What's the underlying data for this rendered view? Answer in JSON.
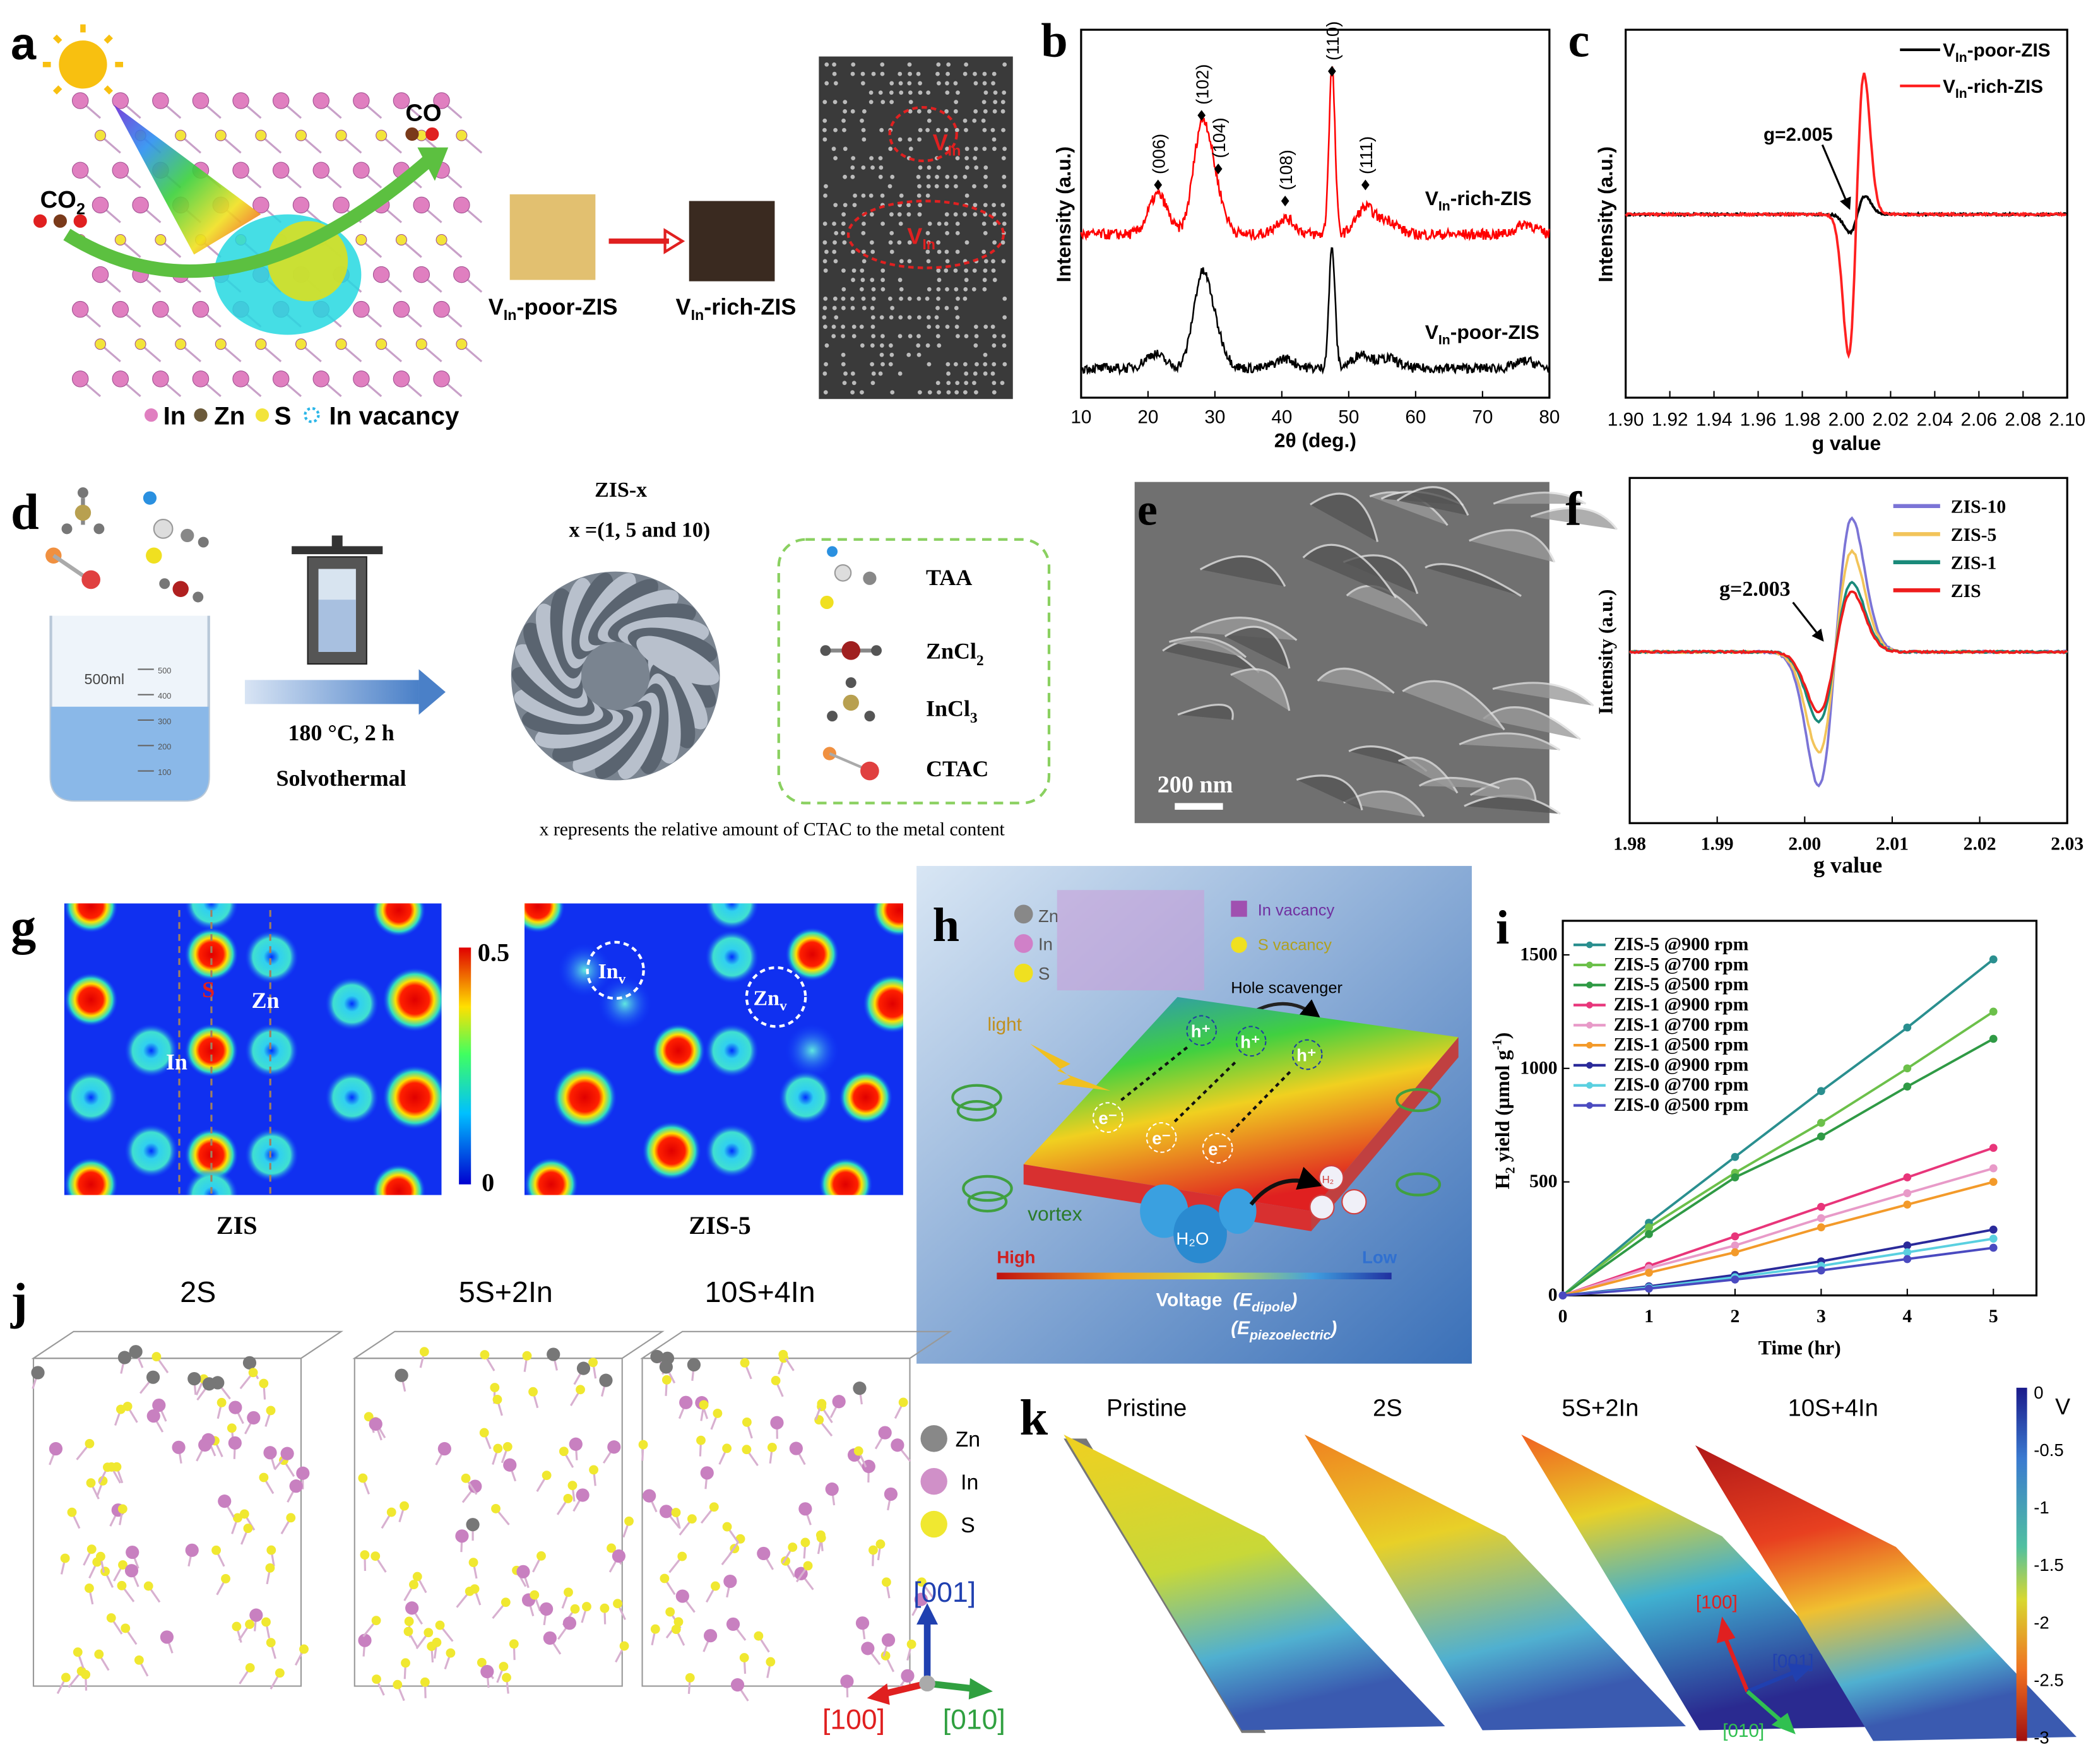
{
  "panel_labels": {
    "a": "a",
    "b": "b",
    "c": "c",
    "d": "d",
    "e": "e",
    "f": "f",
    "g": "g",
    "h": "h",
    "i": "i",
    "j": "j",
    "k": "k"
  },
  "panel_a": {
    "co2": {
      "main": "CO",
      "sub": "2"
    },
    "co": "CO",
    "poor": {
      "main": "V",
      "sub": "In",
      "rest": "-poor-ZIS"
    },
    "rich": {
      "main": "V",
      "sub": "In",
      "rest": "-rich-ZIS"
    },
    "tem_label": {
      "main": "V",
      "sub": "In"
    },
    "legend": {
      "in": "In",
      "zn": "Zn",
      "s": "S",
      "vac": "In vacancy"
    },
    "colors": {
      "in": "#e07fc0",
      "zn": "#6b5a3a",
      "s": "#f2e43a",
      "vac": "#2bb6e8"
    }
  },
  "panel_d": {
    "title": "ZIS-x",
    "subtitle": "x =(1, 5 and 10)",
    "condition": "180 °C, 2 h",
    "method": "Solvothermal",
    "beaker": "500ml",
    "beaker_ticks": [
      "500",
      "400",
      "300",
      "200",
      "100"
    ],
    "reagents": [
      {
        "main": "TAA",
        "sub": ""
      },
      {
        "main": "ZnCl",
        "sub": "2"
      },
      {
        "main": "InCl",
        "sub": "3"
      },
      {
        "main": "CTAC",
        "sub": ""
      }
    ],
    "note": "x represents the relative amount of CTAC to the metal content"
  },
  "panel_e": {
    "scale": "200 nm"
  },
  "panel_g": {
    "left_title": "ZIS",
    "right_title": "ZIS-5",
    "atom_s": "S",
    "atom_zn": "Zn",
    "atom_in": "In",
    "vac_in": {
      "main": "In",
      "sub": "v"
    },
    "vac_zn": {
      "main": "Zn",
      "sub": "v"
    },
    "colorbar_max": "0.5",
    "colorbar_min": "0"
  },
  "panel_h": {
    "zn": "Zn",
    "in": "In",
    "s": "S",
    "in_vacancy": "In vacancy",
    "s_vacancy": "S vacancy",
    "hole_scavenger": "Hole scavenger",
    "light": "light",
    "vortex": "vortex",
    "hole": "h⁺",
    "electron": "e⁻",
    "water": "H₂O",
    "h2": "H₂",
    "high": "High",
    "low": "Low",
    "voltage": "Voltage",
    "e_dipole": "(E",
    "e_dipole_sub": "dipole",
    "e_piezo_sub": "piezoelectric",
    "close": ")"
  },
  "panel_j": {
    "titles": [
      "2S",
      "5S+2In",
      "10S+4In"
    ],
    "legend": [
      "Zn",
      "In",
      "S"
    ],
    "axes": [
      "[001]",
      "[100]",
      "[010]"
    ]
  },
  "panel_k": {
    "titles": [
      "Pristine",
      "2S",
      "5S+2In",
      "10S+4In"
    ],
    "colorbar_ticks": [
      "0",
      "-0.5",
      "-1",
      "-1.5",
      "-2",
      "-2.5",
      "-3"
    ],
    "colorbar_unit": "V",
    "axes": [
      "[100]",
      "[001]",
      "[010]"
    ]
  },
  "chart_data": [
    {
      "id": "b",
      "type": "line",
      "title": "",
      "xlabel": "2θ (deg.)",
      "ylabel": "Intensity (a.u.)",
      "xlim": [
        10,
        80
      ],
      "xticks": [
        "10",
        "20",
        "30",
        "40",
        "50",
        "60",
        "70",
        "80"
      ],
      "peak_labels": [
        {
          "label": "(006)",
          "x": 21.5
        },
        {
          "label": "(102)",
          "x": 28
        },
        {
          "label": "(104)",
          "x": 30.5
        },
        {
          "label": "(108)",
          "x": 40.5
        },
        {
          "label": "(110)",
          "x": 47.5
        },
        {
          "label": "(111)",
          "x": 52.5
        }
      ],
      "series": [
        {
          "name": "VIn-rich-ZIS",
          "label": {
            "main": "V",
            "sub": "In",
            "rest": "-rich-ZIS"
          },
          "color": "#ff0000",
          "peaks_x": [
            21.5,
            28,
            30,
            40.5,
            47.5,
            52.5,
            56,
            76.5
          ],
          "peaks_height": [
            30,
            75,
            28,
            12,
            125,
            20,
            10,
            8
          ]
        },
        {
          "name": "VIn-poor-ZIS",
          "label": {
            "main": "V",
            "sub": "In",
            "rest": "-poor-ZIS"
          },
          "color": "#000000",
          "peaks_x": [
            21,
            28,
            30,
            40.5,
            47.5,
            52,
            56,
            76.5
          ],
          "peaks_height": [
            12,
            70,
            25,
            8,
            100,
            12,
            8,
            6
          ]
        }
      ]
    },
    {
      "id": "c",
      "type": "line",
      "xlabel": "g value",
      "ylabel": "Intensity (a.u.)",
      "xlim": [
        1.9,
        2.1
      ],
      "xticks": [
        "1.90",
        "1.92",
        "1.94",
        "1.96",
        "1.98",
        "2.00",
        "2.02",
        "2.04",
        "2.06",
        "2.08",
        "2.10"
      ],
      "annotation": "g=2.005",
      "legend_position": "top-right",
      "series": [
        {
          "name": "VIn-poor-ZIS",
          "label": {
            "main": "V",
            "sub": "In",
            "rest": "-poor-ZIS"
          },
          "color": "#000000",
          "center": 2.005,
          "amplitude": 0.13
        },
        {
          "name": "VIn-rich-ZIS",
          "label": {
            "main": "V",
            "sub": "In",
            "rest": "-rich-ZIS"
          },
          "color": "#ff2020",
          "center": 2.0045,
          "amplitude": 1.0
        }
      ]
    },
    {
      "id": "f",
      "type": "line",
      "xlabel": "g value",
      "ylabel": "Intensity (a.u.)",
      "xlim": [
        1.98,
        2.03
      ],
      "xticks": [
        "1.98",
        "1.99",
        "2.00",
        "2.01",
        "2.02",
        "2.03"
      ],
      "annotation": "g=2.003",
      "legend_position": "top-right",
      "series": [
        {
          "name": "ZIS-10",
          "color": "#7b74d6",
          "center": 2.0035,
          "amplitude": 1.0
        },
        {
          "name": "ZIS-5",
          "color": "#f2c45a",
          "center": 2.0035,
          "amplitude": 0.75
        },
        {
          "name": "ZIS-1",
          "color": "#1a8a7a",
          "center": 2.0035,
          "amplitude": 0.52
        },
        {
          "name": "ZIS",
          "color": "#ee1c1c",
          "center": 2.0035,
          "amplitude": 0.45
        }
      ]
    },
    {
      "id": "i",
      "type": "line",
      "xlabel": "Time (hr)",
      "ylabel": "H2 yield (µmol g-1)",
      "ylabel_parts": {
        "a": "H",
        "sub": "2",
        "b": " yield (µmol g",
        "sup": "-1",
        "c": ")"
      },
      "xlim": [
        0,
        5.5
      ],
      "ylim": [
        0,
        1650
      ],
      "xticks": [
        "0",
        "1",
        "2",
        "3",
        "4",
        "5"
      ],
      "yticks": [
        "0",
        "500",
        "1000",
        "1500"
      ],
      "legend_position": "top-left",
      "x": [
        0,
        1,
        2,
        3,
        4,
        5
      ],
      "series": [
        {
          "name": "ZIS-5 @900 rpm",
          "color": "#2a8f8f",
          "values": [
            0,
            320,
            610,
            900,
            1180,
            1480
          ]
        },
        {
          "name": "ZIS-5 @700 rpm",
          "color": "#6cc04a",
          "values": [
            0,
            300,
            540,
            760,
            1000,
            1250
          ]
        },
        {
          "name": "ZIS-5 @500 rpm",
          "color": "#2f9a45",
          "values": [
            0,
            270,
            520,
            700,
            920,
            1130
          ]
        },
        {
          "name": "ZIS-1 @900 rpm",
          "color": "#e8357a",
          "values": [
            0,
            130,
            260,
            390,
            520,
            650
          ]
        },
        {
          "name": "ZIS-1 @700 rpm",
          "color": "#e89ac8",
          "values": [
            0,
            120,
            220,
            340,
            450,
            560
          ]
        },
        {
          "name": "ZIS-1 @500 rpm",
          "color": "#f39a2a",
          "values": [
            0,
            100,
            190,
            300,
            400,
            500
          ]
        },
        {
          "name": "ZIS-0 @900 rpm",
          "color": "#2a2a9a",
          "values": [
            0,
            40,
            90,
            150,
            220,
            290
          ]
        },
        {
          "name": "ZIS-0 @700 rpm",
          "color": "#5ad0e0",
          "values": [
            0,
            35,
            80,
            130,
            190,
            250
          ]
        },
        {
          "name": "ZIS-0 @500 rpm",
          "color": "#4a4ac0",
          "values": [
            0,
            30,
            70,
            110,
            160,
            210
          ]
        }
      ]
    }
  ]
}
